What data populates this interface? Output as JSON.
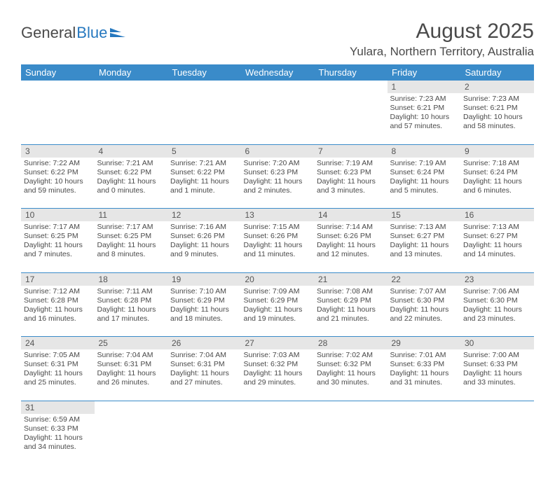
{
  "logo": {
    "text1": "General",
    "text2": "Blue",
    "text_color": "#4a4a4a",
    "blue_color": "#2678bf"
  },
  "title": "August 2025",
  "location": "Yulara, Northern Territory, Australia",
  "header_bg": "#3a8bc9",
  "header_fg": "#ffffff",
  "daynum_bg": "#e6e6e6",
  "border_color": "#3a8bc9",
  "weekdays": [
    "Sunday",
    "Monday",
    "Tuesday",
    "Wednesday",
    "Thursday",
    "Friday",
    "Saturday"
  ],
  "weeks": [
    [
      null,
      null,
      null,
      null,
      null,
      {
        "n": "1",
        "sunrise": "Sunrise: 7:23 AM",
        "sunset": "Sunset: 6:21 PM",
        "day1": "Daylight: 10 hours",
        "day2": "and 57 minutes."
      },
      {
        "n": "2",
        "sunrise": "Sunrise: 7:23 AM",
        "sunset": "Sunset: 6:21 PM",
        "day1": "Daylight: 10 hours",
        "day2": "and 58 minutes."
      }
    ],
    [
      {
        "n": "3",
        "sunrise": "Sunrise: 7:22 AM",
        "sunset": "Sunset: 6:22 PM",
        "day1": "Daylight: 10 hours",
        "day2": "and 59 minutes."
      },
      {
        "n": "4",
        "sunrise": "Sunrise: 7:21 AM",
        "sunset": "Sunset: 6:22 PM",
        "day1": "Daylight: 11 hours",
        "day2": "and 0 minutes."
      },
      {
        "n": "5",
        "sunrise": "Sunrise: 7:21 AM",
        "sunset": "Sunset: 6:22 PM",
        "day1": "Daylight: 11 hours",
        "day2": "and 1 minute."
      },
      {
        "n": "6",
        "sunrise": "Sunrise: 7:20 AM",
        "sunset": "Sunset: 6:23 PM",
        "day1": "Daylight: 11 hours",
        "day2": "and 2 minutes."
      },
      {
        "n": "7",
        "sunrise": "Sunrise: 7:19 AM",
        "sunset": "Sunset: 6:23 PM",
        "day1": "Daylight: 11 hours",
        "day2": "and 3 minutes."
      },
      {
        "n": "8",
        "sunrise": "Sunrise: 7:19 AM",
        "sunset": "Sunset: 6:24 PM",
        "day1": "Daylight: 11 hours",
        "day2": "and 5 minutes."
      },
      {
        "n": "9",
        "sunrise": "Sunrise: 7:18 AM",
        "sunset": "Sunset: 6:24 PM",
        "day1": "Daylight: 11 hours",
        "day2": "and 6 minutes."
      }
    ],
    [
      {
        "n": "10",
        "sunrise": "Sunrise: 7:17 AM",
        "sunset": "Sunset: 6:25 PM",
        "day1": "Daylight: 11 hours",
        "day2": "and 7 minutes."
      },
      {
        "n": "11",
        "sunrise": "Sunrise: 7:17 AM",
        "sunset": "Sunset: 6:25 PM",
        "day1": "Daylight: 11 hours",
        "day2": "and 8 minutes."
      },
      {
        "n": "12",
        "sunrise": "Sunrise: 7:16 AM",
        "sunset": "Sunset: 6:26 PM",
        "day1": "Daylight: 11 hours",
        "day2": "and 9 minutes."
      },
      {
        "n": "13",
        "sunrise": "Sunrise: 7:15 AM",
        "sunset": "Sunset: 6:26 PM",
        "day1": "Daylight: 11 hours",
        "day2": "and 11 minutes."
      },
      {
        "n": "14",
        "sunrise": "Sunrise: 7:14 AM",
        "sunset": "Sunset: 6:26 PM",
        "day1": "Daylight: 11 hours",
        "day2": "and 12 minutes."
      },
      {
        "n": "15",
        "sunrise": "Sunrise: 7:13 AM",
        "sunset": "Sunset: 6:27 PM",
        "day1": "Daylight: 11 hours",
        "day2": "and 13 minutes."
      },
      {
        "n": "16",
        "sunrise": "Sunrise: 7:13 AM",
        "sunset": "Sunset: 6:27 PM",
        "day1": "Daylight: 11 hours",
        "day2": "and 14 minutes."
      }
    ],
    [
      {
        "n": "17",
        "sunrise": "Sunrise: 7:12 AM",
        "sunset": "Sunset: 6:28 PM",
        "day1": "Daylight: 11 hours",
        "day2": "and 16 minutes."
      },
      {
        "n": "18",
        "sunrise": "Sunrise: 7:11 AM",
        "sunset": "Sunset: 6:28 PM",
        "day1": "Daylight: 11 hours",
        "day2": "and 17 minutes."
      },
      {
        "n": "19",
        "sunrise": "Sunrise: 7:10 AM",
        "sunset": "Sunset: 6:29 PM",
        "day1": "Daylight: 11 hours",
        "day2": "and 18 minutes."
      },
      {
        "n": "20",
        "sunrise": "Sunrise: 7:09 AM",
        "sunset": "Sunset: 6:29 PM",
        "day1": "Daylight: 11 hours",
        "day2": "and 19 minutes."
      },
      {
        "n": "21",
        "sunrise": "Sunrise: 7:08 AM",
        "sunset": "Sunset: 6:29 PM",
        "day1": "Daylight: 11 hours",
        "day2": "and 21 minutes."
      },
      {
        "n": "22",
        "sunrise": "Sunrise: 7:07 AM",
        "sunset": "Sunset: 6:30 PM",
        "day1": "Daylight: 11 hours",
        "day2": "and 22 minutes."
      },
      {
        "n": "23",
        "sunrise": "Sunrise: 7:06 AM",
        "sunset": "Sunset: 6:30 PM",
        "day1": "Daylight: 11 hours",
        "day2": "and 23 minutes."
      }
    ],
    [
      {
        "n": "24",
        "sunrise": "Sunrise: 7:05 AM",
        "sunset": "Sunset: 6:31 PM",
        "day1": "Daylight: 11 hours",
        "day2": "and 25 minutes."
      },
      {
        "n": "25",
        "sunrise": "Sunrise: 7:04 AM",
        "sunset": "Sunset: 6:31 PM",
        "day1": "Daylight: 11 hours",
        "day2": "and 26 minutes."
      },
      {
        "n": "26",
        "sunrise": "Sunrise: 7:04 AM",
        "sunset": "Sunset: 6:31 PM",
        "day1": "Daylight: 11 hours",
        "day2": "and 27 minutes."
      },
      {
        "n": "27",
        "sunrise": "Sunrise: 7:03 AM",
        "sunset": "Sunset: 6:32 PM",
        "day1": "Daylight: 11 hours",
        "day2": "and 29 minutes."
      },
      {
        "n": "28",
        "sunrise": "Sunrise: 7:02 AM",
        "sunset": "Sunset: 6:32 PM",
        "day1": "Daylight: 11 hours",
        "day2": "and 30 minutes."
      },
      {
        "n": "29",
        "sunrise": "Sunrise: 7:01 AM",
        "sunset": "Sunset: 6:33 PM",
        "day1": "Daylight: 11 hours",
        "day2": "and 31 minutes."
      },
      {
        "n": "30",
        "sunrise": "Sunrise: 7:00 AM",
        "sunset": "Sunset: 6:33 PM",
        "day1": "Daylight: 11 hours",
        "day2": "and 33 minutes."
      }
    ],
    [
      {
        "n": "31",
        "sunrise": "Sunrise: 6:59 AM",
        "sunset": "Sunset: 6:33 PM",
        "day1": "Daylight: 11 hours",
        "day2": "and 34 minutes."
      },
      null,
      null,
      null,
      null,
      null,
      null
    ]
  ]
}
